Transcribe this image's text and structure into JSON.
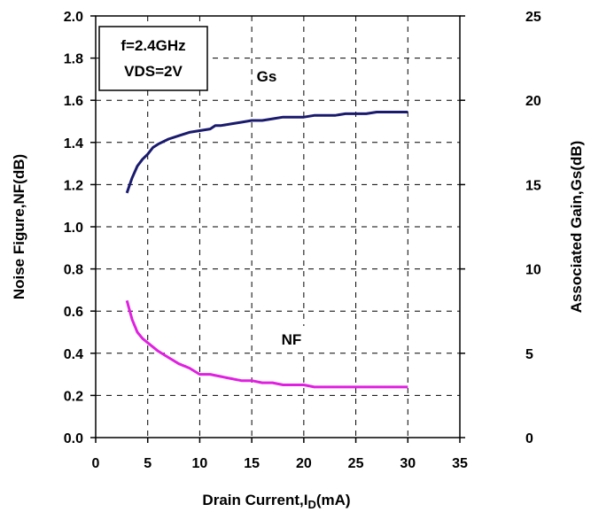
{
  "chart_data": {
    "type": "line",
    "xlabel": "Drain Current,I",
    "xlabel_sub": "D",
    "xlabel_suffix": "(mA)",
    "ylabel_left": "Noise Figure,NF(dB)",
    "ylabel_right": "Associated Gain,Gs(dB)",
    "xlim": [
      0,
      35
    ],
    "ylim_left": [
      0,
      2.0
    ],
    "ylim_right": [
      0,
      25
    ],
    "x_ticks": [
      "0",
      "5",
      "10",
      "15",
      "20",
      "25",
      "30",
      "35"
    ],
    "y_left_ticks": [
      "0.0",
      "0.2",
      "0.4",
      "0.6",
      "0.8",
      "1.0",
      "1.2",
      "1.4",
      "1.6",
      "1.8",
      "2.0"
    ],
    "y_right_ticks": [
      "0",
      "5",
      "10",
      "15",
      "20",
      "25"
    ],
    "grid": true,
    "conditions": [
      "f=2.4GHz",
      "VDS=2V"
    ],
    "series": [
      {
        "name": "Gs",
        "axis": "right",
        "color": "#1a1a6e",
        "x": [
          3,
          3.5,
          4,
          4.5,
          5,
          5.5,
          6,
          7,
          8,
          9,
          10,
          11,
          11.5,
          12,
          13,
          14,
          15,
          16,
          17,
          18,
          19,
          20,
          21,
          22,
          23,
          24,
          25,
          26,
          27,
          28,
          29,
          30
        ],
        "y": [
          14.5,
          15.4,
          16.1,
          16.5,
          16.8,
          17.2,
          17.4,
          17.7,
          17.9,
          18.1,
          18.2,
          18.3,
          18.5,
          18.5,
          18.6,
          18.7,
          18.8,
          18.8,
          18.9,
          19.0,
          19.0,
          19.0,
          19.1,
          19.1,
          19.1,
          19.2,
          19.2,
          19.2,
          19.3,
          19.3,
          19.3,
          19.3
        ]
      },
      {
        "name": "NF",
        "axis": "left",
        "color": "#e020e0",
        "x": [
          3,
          3.5,
          4,
          4.5,
          5,
          5.5,
          6,
          7,
          8,
          9,
          10,
          11,
          12,
          13,
          14,
          15,
          16,
          17,
          18,
          19,
          20,
          21,
          22,
          23,
          24,
          25,
          26,
          27,
          28,
          29,
          30
        ],
        "y": [
          0.65,
          0.56,
          0.5,
          0.47,
          0.45,
          0.43,
          0.41,
          0.38,
          0.35,
          0.33,
          0.3,
          0.3,
          0.29,
          0.28,
          0.27,
          0.27,
          0.26,
          0.26,
          0.25,
          0.25,
          0.25,
          0.24,
          0.24,
          0.24,
          0.24,
          0.24,
          0.24,
          0.24,
          0.24,
          0.24,
          0.24
        ]
      }
    ]
  }
}
